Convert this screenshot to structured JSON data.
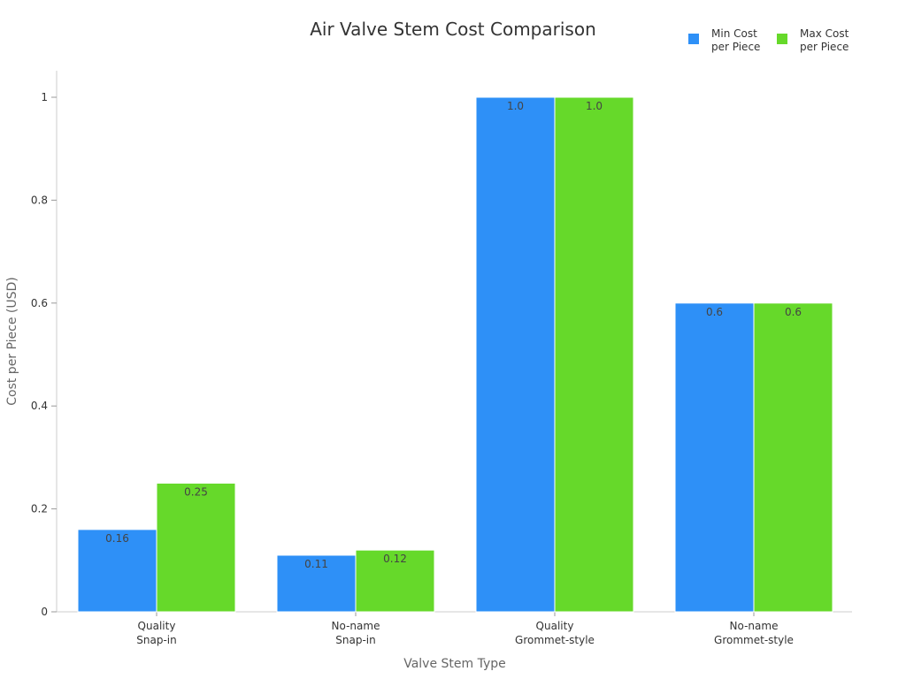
{
  "chart_data": {
    "type": "bar",
    "title": "Air Valve Stem Cost Comparison",
    "xlabel": "Valve Stem Type",
    "ylabel": "Cost per Piece (USD)",
    "categories": [
      [
        "Quality",
        "Snap-in"
      ],
      [
        "No-name",
        "Snap-in"
      ],
      [
        "Quality",
        "Grommet-style"
      ],
      [
        "No-name",
        "Grommet-style"
      ]
    ],
    "series": [
      {
        "name": [
          "Min Cost",
          "per Piece"
        ],
        "values": [
          0.16,
          0.11,
          1.0,
          0.6
        ],
        "labels": [
          "0.16",
          "0.11",
          "1.0",
          "0.6"
        ],
        "color": "#2e90f7"
      },
      {
        "name": [
          "Max Cost",
          "per Piece"
        ],
        "values": [
          0.25,
          0.12,
          1.0,
          0.6
        ],
        "labels": [
          "0.25",
          "0.12",
          "1.0",
          "0.6"
        ],
        "color": "#66d92a"
      }
    ],
    "ylim": [
      0,
      1.05
    ],
    "yticks": [
      0,
      0.2,
      0.4,
      0.6,
      0.8,
      1
    ],
    "ytick_labels": [
      "0",
      "0.2",
      "0.4",
      "0.6",
      "0.8",
      "1"
    ],
    "grid": false,
    "legend": "top-right"
  }
}
